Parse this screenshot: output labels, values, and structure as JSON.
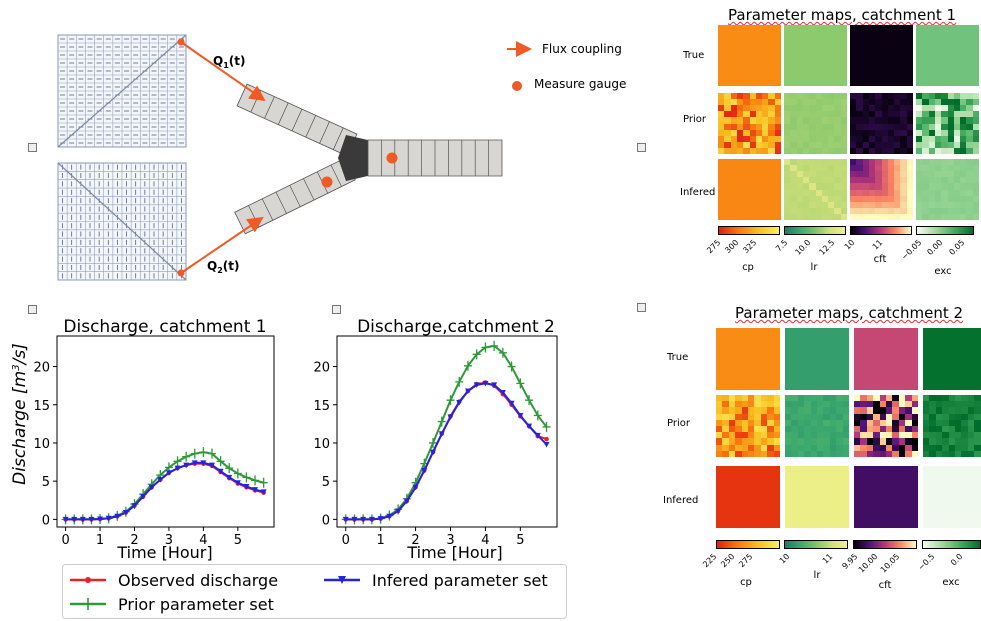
{
  "diagram": {
    "q1_label": "Q",
    "q1_sub": "1",
    "q1_tail": "(t)",
    "q2_label": "Q",
    "q2_sub": "2",
    "q2_tail": "(t)",
    "legend_flux": "Flux coupling",
    "legend_gauge": "Measure gauge",
    "accent": "#f05a24"
  },
  "maps1": {
    "title": "Parameter maps, catchment 1",
    "rows": [
      "True",
      "Prior",
      "Infered"
    ],
    "colorbars": [
      {
        "name": "cp",
        "ticks": [
          "275",
          "300",
          "325"
        ]
      },
      {
        "name": "lr",
        "ticks": [
          "7.5",
          "10.0",
          "12.5"
        ]
      },
      {
        "name": "cft",
        "ticks": [
          "10",
          "11"
        ]
      },
      {
        "name": "exc",
        "ticks": [
          "−0.05",
          "0.00",
          "0.05"
        ]
      }
    ]
  },
  "maps2": {
    "title": "Parameter maps, catchment 2",
    "rows": [
      "True",
      "Prior",
      "Infered"
    ],
    "colorbars": [
      {
        "name": "cp",
        "ticks": [
          "225",
          "250",
          "275"
        ]
      },
      {
        "name": "lr",
        "ticks": [
          "10",
          "11"
        ]
      },
      {
        "name": "cft",
        "ticks": [
          "9.95",
          "10.00",
          "10.05"
        ]
      },
      {
        "name": "exc",
        "ticks": [
          "−0.5",
          "0.0"
        ]
      }
    ]
  },
  "legend": {
    "observed": "Observed discharge",
    "infered": "Infered parameter set",
    "prior": "Prior parameter set"
  },
  "chart_data": [
    {
      "type": "line",
      "title": "Discharge, catchment 1",
      "xlabel": "Time [Hour]",
      "ylabel": "Discharge [m³/s]",
      "xlim": [
        -0.25,
        6.05
      ],
      "ylim": [
        -1,
        24
      ],
      "xticks": [
        "0",
        "1",
        "2",
        "3",
        "4",
        "5"
      ],
      "yticks": [
        "0",
        "5",
        "10",
        "15",
        "20"
      ],
      "x": [
        0,
        0.25,
        0.5,
        0.75,
        1.0,
        1.25,
        1.5,
        1.75,
        2.0,
        2.25,
        2.5,
        2.75,
        3.0,
        3.25,
        3.5,
        3.75,
        4.0,
        4.25,
        4.5,
        4.75,
        5.0,
        5.25,
        5.5,
        5.75
      ],
      "series": [
        {
          "name": "Observed discharge",
          "color": "#e8202a",
          "marker": "dot",
          "values": [
            0,
            0,
            0,
            0,
            0.05,
            0.15,
            0.4,
            0.9,
            1.8,
            3.0,
            4.2,
            5.2,
            6.1,
            6.7,
            7.1,
            7.3,
            7.3,
            7.0,
            6.2,
            5.4,
            4.7,
            4.2,
            3.8,
            3.5
          ]
        },
        {
          "name": "Prior parameter set",
          "color": "#2e9a36",
          "marker": "plus",
          "values": [
            0,
            0,
            0,
            0,
            0.05,
            0.15,
            0.45,
            1.0,
            2.0,
            3.3,
            4.6,
            5.8,
            6.8,
            7.6,
            8.2,
            8.6,
            8.8,
            8.6,
            7.6,
            6.7,
            6.0,
            5.5,
            5.1,
            4.8
          ]
        },
        {
          "name": "Infered parameter set",
          "color": "#2323e0",
          "marker": "tri",
          "values": [
            0,
            0,
            0,
            0,
            0.05,
            0.15,
            0.4,
            0.9,
            1.8,
            3.0,
            4.2,
            5.2,
            6.1,
            6.7,
            7.1,
            7.4,
            7.4,
            7.1,
            6.3,
            5.5,
            4.8,
            4.3,
            3.9,
            3.6
          ]
        }
      ]
    },
    {
      "type": "line",
      "title": "Discharge,catchment 2",
      "xlabel": "Time [Hour]",
      "xlim": [
        -0.25,
        6.05
      ],
      "ylim": [
        -1,
        24
      ],
      "xticks": [
        "0",
        "1",
        "2",
        "3",
        "4",
        "5"
      ],
      "yticks": [
        "0",
        "5",
        "10",
        "15",
        "20"
      ],
      "x": [
        0,
        0.25,
        0.5,
        0.75,
        1.0,
        1.25,
        1.5,
        1.75,
        2.0,
        2.25,
        2.5,
        2.75,
        3.0,
        3.25,
        3.5,
        3.75,
        4.0,
        4.25,
        4.5,
        4.75,
        5.0,
        5.25,
        5.5,
        5.75
      ],
      "series": [
        {
          "name": "Observed discharge",
          "color": "#e8202a",
          "marker": "dot",
          "values": [
            0,
            0,
            0,
            0,
            0.1,
            0.4,
            1.1,
            2.4,
            4.2,
            6.4,
            8.8,
            11.2,
            13.5,
            15.4,
            16.8,
            17.7,
            17.9,
            17.5,
            16.4,
            15.0,
            13.5,
            12.2,
            10.9,
            10.5
          ]
        },
        {
          "name": "Prior parameter set",
          "color": "#2e9a36",
          "marker": "plus",
          "values": [
            0,
            0,
            0,
            0,
            0.1,
            0.5,
            1.3,
            2.7,
            4.8,
            7.3,
            10.0,
            12.8,
            15.6,
            18.0,
            20.1,
            21.6,
            22.5,
            22.7,
            21.8,
            20.0,
            17.8,
            15.6,
            13.6,
            12.1
          ]
        },
        {
          "name": "Infered parameter set",
          "color": "#2323e0",
          "marker": "tri",
          "values": [
            0,
            0,
            0,
            0,
            0.1,
            0.4,
            1.1,
            2.4,
            4.2,
            6.4,
            8.8,
            11.2,
            13.4,
            15.3,
            16.8,
            17.6,
            17.8,
            17.6,
            16.6,
            15.2,
            13.6,
            12.2,
            11.0,
            9.8
          ]
        }
      ]
    }
  ]
}
